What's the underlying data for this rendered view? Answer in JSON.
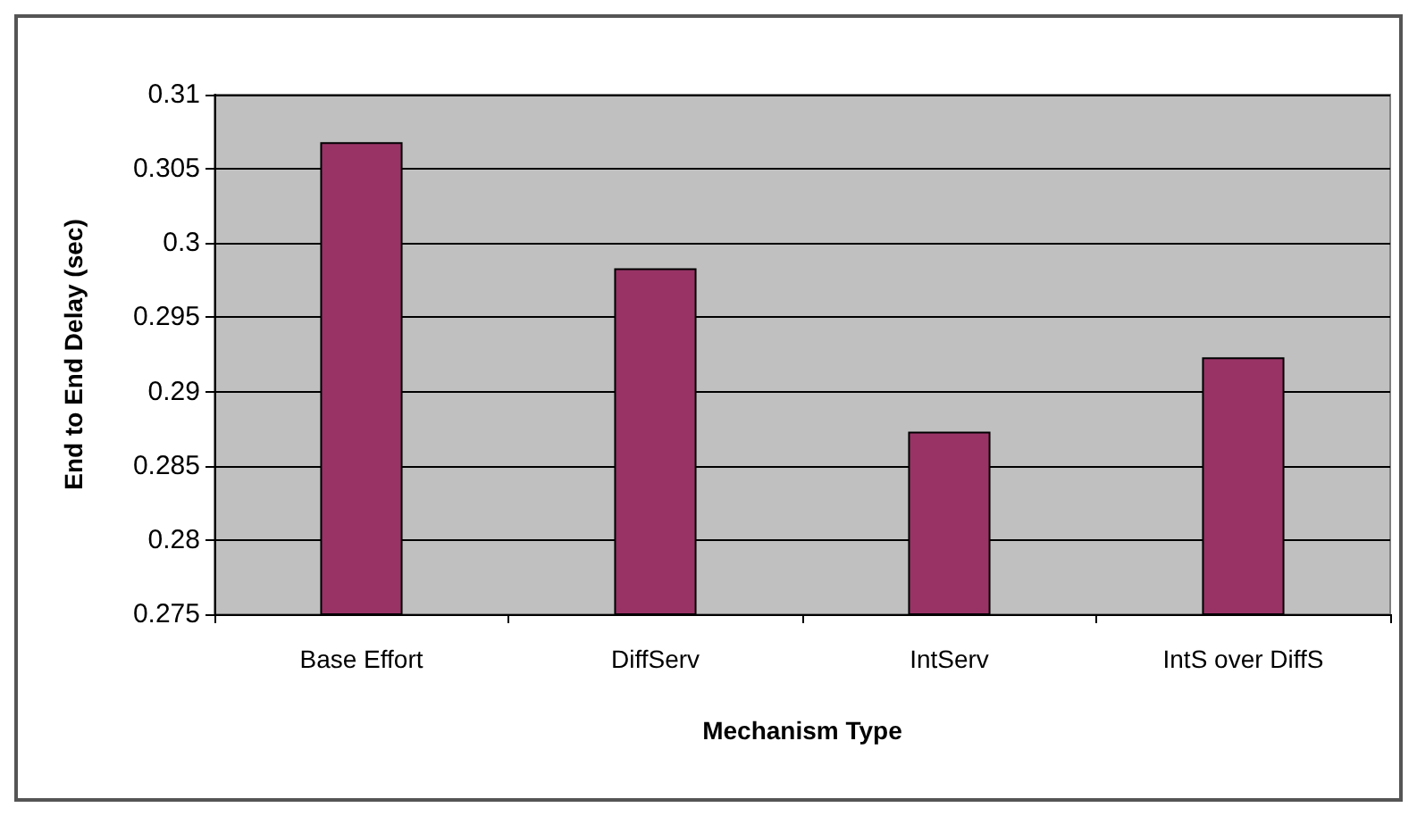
{
  "chart_data": {
    "type": "bar",
    "xlabel": "Mechanism Type",
    "ylabel": "End to End Delay (sec)",
    "categories": [
      "Base Effort",
      "DiffServ",
      "IntServ",
      "IntS over DiffS"
    ],
    "values": [
      0.3068,
      0.2983,
      0.2873,
      0.2923
    ],
    "color": "#993366",
    "ylim": [
      0.275,
      0.31
    ],
    "yticks": [
      0.275,
      0.28,
      0.285,
      0.29,
      0.295,
      0.3,
      0.305,
      0.31
    ],
    "grid": "y"
  }
}
